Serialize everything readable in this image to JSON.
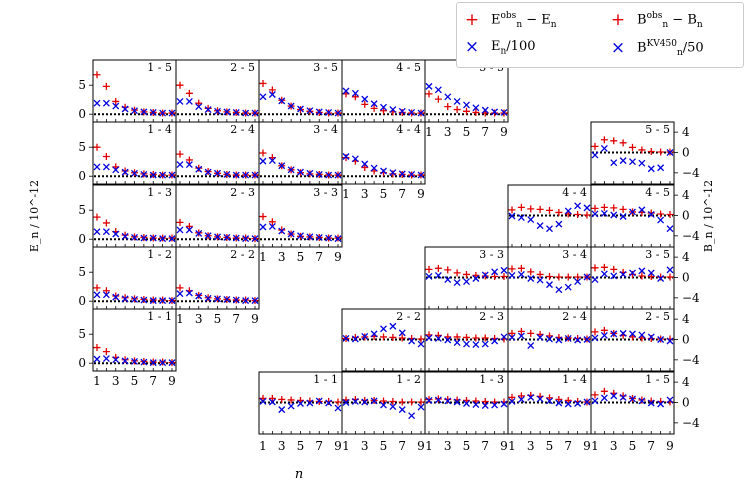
{
  "chart_data": {
    "type": "scatter",
    "x_label": "n",
    "left_ylabel": "E_n / 10^-12",
    "right_ylabel": "B_n / 10^-12",
    "x_ticks": [
      "1",
      "3",
      "5",
      "7",
      "9"
    ],
    "left_yticks": [
      "0",
      "5"
    ],
    "right_yticks": [
      "4",
      "0",
      "−4"
    ],
    "legend": [
      {
        "sym": "+",
        "color": "#e00000",
        "main": "E",
        "sup": "obs",
        "sub": "n",
        "rest": " − E",
        "rest_sub": "n"
      },
      {
        "sym": "+",
        "color": "#e00000",
        "main": "B",
        "sup": "obs",
        "sub": "n",
        "rest": " − B",
        "rest_sub": "n"
      },
      {
        "sym": "×",
        "color": "#0000dd",
        "main": "E",
        "sub": "n",
        "rest": "/100"
      },
      {
        "sym": "×",
        "color": "#0000dd",
        "main": "B",
        "sup": "KV450",
        "sub": "n",
        "rest": "/50"
      }
    ],
    "e_panels": [
      {
        "label": "1 - 5",
        "red": [
          6.8,
          4.8,
          2.2,
          1.2,
          0.7,
          0.4,
          0.3,
          0.2,
          0.2
        ],
        "blue": [
          1.9,
          1.9,
          1.4,
          0.9,
          0.6,
          0.4,
          0.3,
          0.2,
          0.2
        ]
      },
      {
        "label": "2 - 5",
        "red": [
          5.0,
          3.6,
          1.9,
          1.0,
          0.6,
          0.4,
          0.3,
          0.2,
          0.2
        ],
        "blue": [
          2.2,
          2.2,
          1.3,
          0.8,
          0.5,
          0.4,
          0.3,
          0.2,
          0.2
        ]
      },
      {
        "label": "3 - 5",
        "red": [
          5.3,
          4.2,
          2.4,
          1.4,
          0.8,
          0.5,
          0.3,
          0.2,
          0.2
        ],
        "blue": [
          3.0,
          3.4,
          2.3,
          1.4,
          0.9,
          0.6,
          0.4,
          0.3,
          0.2
        ]
      },
      {
        "label": "4 - 5",
        "red": [
          3.5,
          3.0,
          1.7,
          1.0,
          0.6,
          0.4,
          0.3,
          0.2,
          0.2
        ],
        "blue": [
          4.0,
          3.6,
          2.6,
          1.8,
          1.2,
          0.8,
          0.5,
          0.3,
          0.2
        ]
      },
      {
        "label": "5 - 5",
        "red": [
          3.5,
          2.6,
          1.3,
          0.8,
          0.5,
          0.3,
          0.2,
          0.2,
          0.2
        ],
        "blue": [
          4.8,
          4.2,
          3.0,
          2.2,
          1.6,
          1.1,
          0.7,
          0.4,
          0.3
        ]
      },
      {
        "label": "1 - 4",
        "red": [
          5.0,
          3.4,
          1.6,
          0.9,
          0.6,
          0.4,
          0.3,
          0.2,
          0.2
        ],
        "blue": [
          1.6,
          1.6,
          1.1,
          0.7,
          0.5,
          0.3,
          0.2,
          0.2,
          0.2
        ]
      },
      {
        "label": "2 - 4",
        "red": [
          3.8,
          2.8,
          1.4,
          0.8,
          0.5,
          0.3,
          0.2,
          0.2,
          0.2
        ],
        "blue": [
          2.0,
          2.0,
          1.2,
          0.7,
          0.5,
          0.3,
          0.2,
          0.2,
          0.2
        ]
      },
      {
        "label": "3 - 4",
        "red": [
          4.0,
          3.2,
          1.8,
          1.1,
          0.6,
          0.4,
          0.3,
          0.2,
          0.2
        ],
        "blue": [
          2.6,
          2.7,
          1.8,
          1.1,
          0.7,
          0.5,
          0.3,
          0.2,
          0.2
        ]
      },
      {
        "label": "4 - 4",
        "red": [
          3.2,
          2.6,
          1.5,
          0.9,
          0.6,
          0.4,
          0.3,
          0.2,
          0.2
        ],
        "blue": [
          3.4,
          3.0,
          2.1,
          1.4,
          0.9,
          0.6,
          0.4,
          0.3,
          0.2
        ]
      },
      {
        "label": "1 - 3",
        "red": [
          3.8,
          2.8,
          1.3,
          0.7,
          0.4,
          0.3,
          0.2,
          0.2,
          0.2
        ],
        "blue": [
          1.3,
          1.3,
          0.9,
          0.5,
          0.3,
          0.2,
          0.2,
          0.1,
          0.1
        ]
      },
      {
        "label": "2 - 3",
        "red": [
          2.9,
          2.2,
          1.1,
          0.6,
          0.4,
          0.3,
          0.2,
          0.2,
          0.1
        ],
        "blue": [
          1.6,
          1.6,
          1.0,
          0.6,
          0.4,
          0.3,
          0.2,
          0.1,
          0.1
        ]
      },
      {
        "label": "3 - 3",
        "red": [
          3.9,
          3.0,
          1.6,
          0.9,
          0.5,
          0.4,
          0.3,
          0.2,
          0.2
        ],
        "blue": [
          2.1,
          2.2,
          1.4,
          0.9,
          0.6,
          0.4,
          0.3,
          0.2,
          0.1
        ]
      },
      {
        "label": "1 - 2",
        "red": [
          2.3,
          1.8,
          0.9,
          0.6,
          0.4,
          0.3,
          0.2,
          0.2,
          0.1
        ],
        "blue": [
          1.1,
          1.1,
          0.7,
          0.4,
          0.3,
          0.2,
          0.1,
          0.1,
          0.1
        ]
      },
      {
        "label": "2 - 2",
        "red": [
          2.3,
          1.8,
          1.0,
          0.6,
          0.4,
          0.3,
          0.2,
          0.2,
          0.1
        ],
        "blue": [
          1.3,
          1.4,
          0.9,
          0.5,
          0.4,
          0.3,
          0.2,
          0.1,
          0.1
        ]
      },
      {
        "label": "1 - 1",
        "red": [
          2.7,
          2.0,
          1.0,
          0.6,
          0.4,
          0.3,
          0.2,
          0.2,
          0.1
        ],
        "blue": [
          0.7,
          0.8,
          0.6,
          0.4,
          0.3,
          0.2,
          0.1,
          0.1,
          0.1
        ]
      }
    ],
    "b_panels": [
      {
        "label": "5 - 5",
        "red": [
          1.2,
          2.5,
          2.3,
          1.9,
          1.0,
          0.5,
          0.2,
          0.1,
          0.1
        ],
        "blue": [
          -0.5,
          0.8,
          -2.0,
          -1.6,
          -1.8,
          -2.1,
          -3.2,
          -3.0,
          0.0
        ]
      },
      {
        "label": "4 - 4",
        "red": [
          1.1,
          1.6,
          1.3,
          1.2,
          1.0,
          0.6,
          0.3,
          0.2,
          0.1
        ],
        "blue": [
          -0.1,
          -0.4,
          -0.8,
          -2.0,
          -2.6,
          -1.7,
          0.9,
          1.9,
          1.5
        ]
      },
      {
        "label": "4 - 5",
        "red": [
          1.4,
          1.6,
          1.5,
          1.2,
          0.7,
          0.6,
          0.5,
          0.3,
          0.2
        ],
        "blue": [
          0.3,
          0.4,
          0.1,
          -0.2,
          0.7,
          1.1,
          0.2,
          -0.9,
          -2.6
        ]
      },
      {
        "label": "3 - 3",
        "red": [
          1.6,
          1.8,
          1.5,
          0.9,
          0.6,
          0.4,
          0.3,
          0.2,
          0.2
        ],
        "blue": [
          0.2,
          0.4,
          -0.4,
          -1.0,
          -0.8,
          -0.2,
          0.5,
          1.1,
          1.4
        ]
      },
      {
        "label": "3 - 4",
        "red": [
          1.7,
          1.8,
          1.1,
          0.6,
          0.2,
          0.1,
          0.1,
          0.1,
          0.1
        ],
        "blue": [
          0.4,
          0.6,
          -0.2,
          -0.5,
          -1.4,
          -2.4,
          -1.9,
          -0.8,
          0.1
        ]
      },
      {
        "label": "3 - 5",
        "red": [
          1.9,
          2.0,
          1.6,
          1.0,
          0.6,
          0.3,
          0.2,
          0.1,
          0.1
        ],
        "blue": [
          -0.4,
          0.7,
          0.3,
          0.6,
          0.9,
          1.3,
          0.9,
          -0.2,
          1.5
        ]
      },
      {
        "label": "2 - 2",
        "red": [
          0.2,
          0.4,
          0.5,
          0.6,
          0.5,
          0.4,
          0.3,
          0.2,
          0.1
        ],
        "blue": [
          0.2,
          0.1,
          0.6,
          1.1,
          2.1,
          2.6,
          1.3,
          -0.3,
          -0.9
        ]
      },
      {
        "label": "2 - 3",
        "red": [
          0.9,
          0.8,
          0.5,
          0.5,
          0.4,
          0.3,
          0.3,
          0.2,
          0.1
        ],
        "blue": [
          0.3,
          0.2,
          -0.1,
          -0.6,
          -0.9,
          -1.0,
          -0.9,
          -0.3,
          0.5
        ]
      },
      {
        "label": "2 - 4",
        "red": [
          1.2,
          1.6,
          1.2,
          1.0,
          0.7,
          0.4,
          0.3,
          0.2,
          0.1
        ],
        "blue": [
          0.4,
          0.7,
          -1.2,
          0.4,
          0.1,
          -0.1,
          0.2,
          -0.1,
          0.0
        ]
      },
      {
        "label": "2 - 5",
        "red": [
          1.5,
          1.8,
          1.2,
          0.8,
          0.5,
          0.3,
          0.2,
          0.1,
          0.1
        ],
        "blue": [
          0.3,
          0.8,
          1.1,
          1.2,
          1.1,
          0.9,
          0.5,
          0.0,
          -0.3
        ]
      },
      {
        "label": "1 - 1",
        "red": [
          0.8,
          0.8,
          0.6,
          0.5,
          0.4,
          0.3,
          0.2,
          0.2,
          0.1
        ],
        "blue": [
          0.2,
          0.1,
          -1.4,
          -0.7,
          -0.2,
          -0.1,
          0.3,
          -0.1,
          -1.1
        ]
      },
      {
        "label": "1 - 2",
        "red": [
          0.5,
          0.6,
          0.4,
          0.4,
          0.3,
          0.2,
          0.1,
          0.1,
          0.1
        ],
        "blue": [
          0.0,
          0.2,
          0.1,
          0.3,
          -0.5,
          -0.8,
          -1.4,
          -2.6,
          -0.9
        ]
      },
      {
        "label": "1 - 3",
        "red": [
          0.6,
          0.7,
          0.6,
          0.5,
          0.4,
          0.3,
          0.2,
          0.1,
          0.1
        ],
        "blue": [
          0.4,
          0.5,
          0.3,
          0.1,
          -0.2,
          -0.4,
          -0.6,
          -0.5,
          -0.3
        ]
      },
      {
        "label": "1 - 4",
        "red": [
          1.0,
          1.3,
          1.4,
          1.2,
          0.9,
          0.6,
          0.4,
          0.2,
          0.1
        ],
        "blue": [
          0.2,
          0.6,
          1.0,
          0.7,
          0.3,
          -0.1,
          -0.3,
          -0.2,
          0.1
        ]
      },
      {
        "label": "1 - 5",
        "red": [
          1.5,
          2.2,
          1.8,
          1.3,
          0.8,
          0.5,
          0.3,
          0.2,
          0.1
        ],
        "blue": [
          0.3,
          0.9,
          1.3,
          1.0,
          0.7,
          0.3,
          -0.1,
          -0.3,
          0.5
        ]
      }
    ]
  }
}
